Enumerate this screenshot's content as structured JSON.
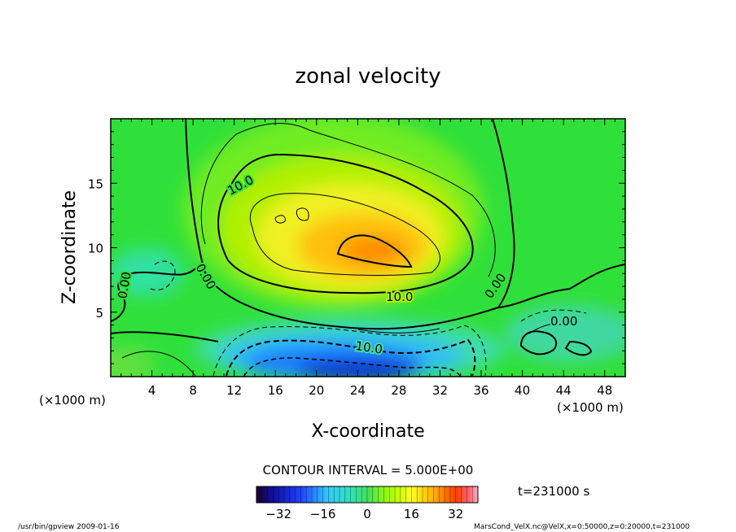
{
  "chart_data": {
    "type": "heatmap",
    "title": "zonal velocity",
    "xlabel": "X-coordinate",
    "ylabel": "Z-coordinate",
    "x_unit_left": "(×1000 m)",
    "x_unit_right": "(×1000 m)",
    "x_unit_y": "(×1000 m)",
    "xlim": [
      0,
      50
    ],
    "ylim": [
      0,
      20
    ],
    "x_ticks": [
      "4",
      "8",
      "12",
      "16",
      "20",
      "24",
      "28",
      "32",
      "36",
      "40",
      "44",
      "48"
    ],
    "y_ticks": [
      "5",
      "10",
      "15"
    ],
    "contour_interval_text": "CONTOUR INTERVAL = 5.000E+00",
    "time_text": "t=231000 s",
    "colorbar": {
      "min": -40,
      "max": 40,
      "ticks": [
        "−32",
        "−16",
        "0",
        "16",
        "32"
      ]
    },
    "contour_labels": [
      "10.0",
      "0.00",
      "0.00",
      "10.0",
      "0.00",
      "0.00",
      "10.0"
    ],
    "footer_left": "/usr/bin/gpview   2009-01-16",
    "footer_right": "MarsCond_VelX.nc@VelX,x=0:50000,z=0:20000,t=231000",
    "features": [
      {
        "name": "positive-jet-core",
        "x": 23.5,
        "z": 9.5,
        "value": 24
      },
      {
        "name": "negative-low-level-core",
        "x": 24,
        "z": 0.8,
        "value": -28
      }
    ]
  }
}
